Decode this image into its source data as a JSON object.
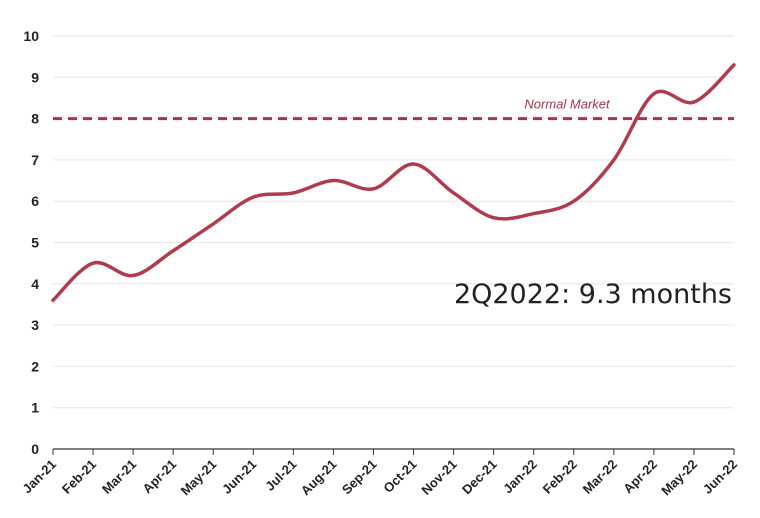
{
  "chart_data": {
    "type": "line",
    "categories": [
      "Jan-21",
      "Feb-21",
      "Mar-21",
      "Apr-21",
      "May-21",
      "Jun-21",
      "Jul-21",
      "Aug-21",
      "Sep-21",
      "Oct-21",
      "Nov-21",
      "Dec-21",
      "Jan-22",
      "Feb-22",
      "Mar-22",
      "Apr-22",
      "May-22",
      "Jun-22"
    ],
    "series": [
      {
        "name": "",
        "values": [
          3.6,
          4.5,
          4.2,
          4.8,
          5.45,
          6.1,
          6.2,
          6.5,
          6.3,
          6.9,
          6.2,
          5.6,
          5.7,
          6.0,
          7.0,
          8.6,
          8.4,
          9.3
        ]
      }
    ],
    "ylim": [
      0,
      10
    ],
    "yticks": [
      "0",
      "1",
      "2",
      "3",
      "4",
      "5",
      "6",
      "7",
      "8",
      "9",
      "10"
    ],
    "reference_line": {
      "value": 8,
      "label": "Normal Market"
    },
    "annotation": "2Q2022: 9.3 months",
    "grid": true,
    "colors": {
      "series": "#b03a4e",
      "reference": "#a83447",
      "grid": "#e6e6e6"
    }
  }
}
